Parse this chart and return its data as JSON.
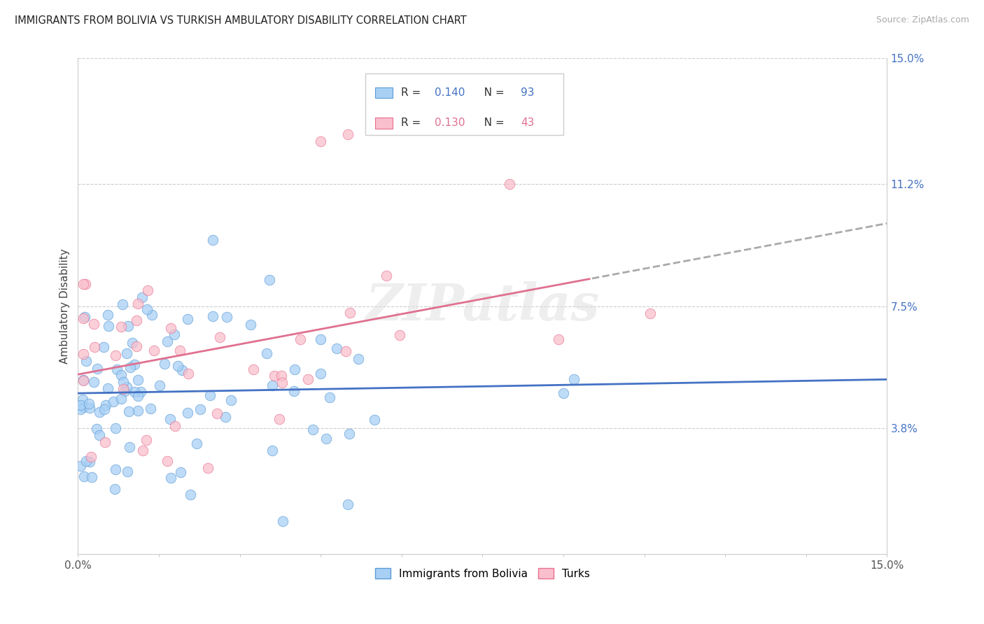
{
  "title": "IMMIGRANTS FROM BOLIVIA VS TURKISH AMBULATORY DISABILITY CORRELATION CHART",
  "source": "Source: ZipAtlas.com",
  "ylabel": "Ambulatory Disability",
  "xlim": [
    0.0,
    15.0
  ],
  "ylim": [
    0.0,
    15.0
  ],
  "yticks": [
    3.8,
    7.5,
    11.2,
    15.0
  ],
  "ytick_labels": [
    "3.8%",
    "7.5%",
    "11.2%",
    "15.0%"
  ],
  "legend_r1": "0.140",
  "legend_n1": "93",
  "legend_r2": "0.130",
  "legend_n2": "43",
  "color_bolivia": "#A8D0F5",
  "color_turks": "#F9BFCC",
  "color_edge_bolivia": "#5B9BD5",
  "color_edge_turks": "#E87090",
  "color_line_bolivia": "#4472C4",
  "color_line_turks": "#E07090",
  "color_title": "#222222",
  "color_source": "#aaaaaa",
  "color_right_axis": "#4472C4",
  "watermark": "ZIPatlas",
  "turks_dash_start_x": 9.5
}
